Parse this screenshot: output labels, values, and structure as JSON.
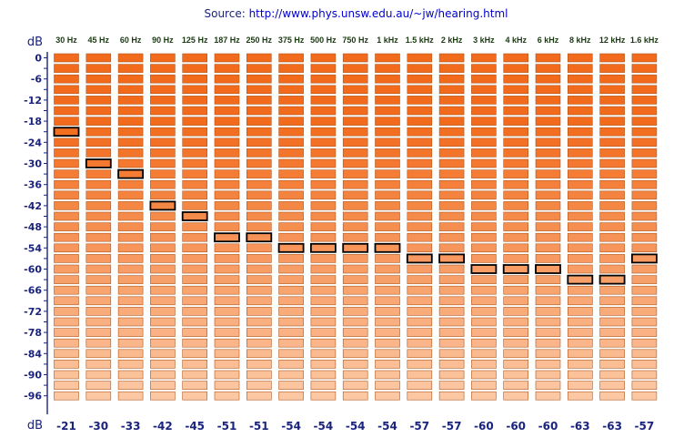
{
  "source": {
    "prefix": "Source: ",
    "url": "http://www.phys.unsw.edu.au/~jw/hearing.html"
  },
  "chart_data": {
    "type": "heatmap",
    "top_unit": "dB",
    "bottom_unit": "dB",
    "frequencies": [
      "30 Hz",
      "45 Hz",
      "60 Hz",
      "90 Hz",
      "125 Hz",
      "187 Hz",
      "250 Hz",
      "375 Hz",
      "500 Hz",
      "750 Hz",
      "1 kHz",
      "1.5 kHz",
      "2 kHz",
      "3 kHz",
      "4 kHz",
      "6 kHz",
      "8 kHz",
      "12 kHz",
      "1.6 kHz"
    ],
    "thresholds_db": [
      -21,
      -30,
      -33,
      -42,
      -45,
      -51,
      -51,
      -54,
      -54,
      -54,
      -54,
      -57,
      -57,
      -60,
      -60,
      -60,
      -63,
      -63,
      -57
    ],
    "threshold_labels": [
      "-21",
      "-30",
      "-33",
      "-42",
      "-45",
      "-51",
      "-51",
      "-54",
      "-54",
      "-54",
      "-54",
      "-57",
      "-57",
      "-60",
      "-60",
      "-60",
      "-63",
      "-63",
      "-57"
    ],
    "y_tick_labels": [
      "0",
      "-6",
      "-12",
      "-18",
      "-24",
      "-30",
      "-36",
      "-42",
      "-48",
      "-54",
      "-60",
      "-66",
      "-72",
      "-78",
      "-84",
      "-90",
      "-96"
    ],
    "y_range_db": [
      0,
      -99
    ],
    "level_step_db": 3,
    "colors": {
      "cell_strong": "#f26a1b",
      "cell_light": "#fcc8a4",
      "cell_border": "#b0581e",
      "highlight_border": "#000000",
      "axis": "#1a237e"
    }
  }
}
